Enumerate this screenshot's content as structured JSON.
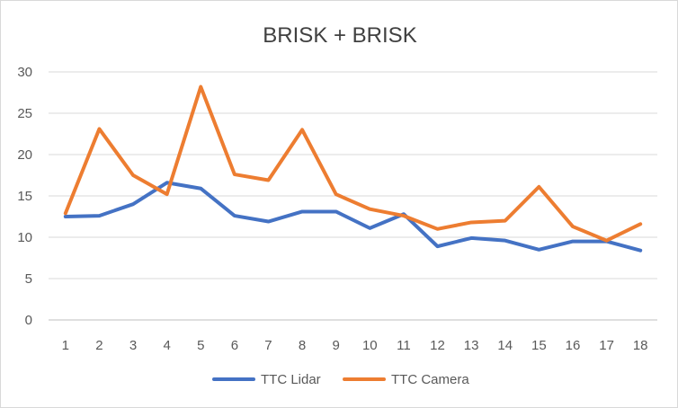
{
  "chart_data": {
    "type": "line",
    "title": "BRISK + BRISK",
    "xlabel": "",
    "ylabel": "",
    "categories": [
      "1",
      "2",
      "3",
      "4",
      "5",
      "6",
      "7",
      "8",
      "9",
      "10",
      "11",
      "12",
      "13",
      "14",
      "15",
      "16",
      "17",
      "18"
    ],
    "ylim": [
      0,
      30
    ],
    "yticks": [
      "0",
      "5",
      "10",
      "15",
      "20",
      "25",
      "30"
    ],
    "grid": true,
    "legend": "bottom",
    "series": [
      {
        "name": "TTC Lidar",
        "color": "#4472C4",
        "values": [
          12.5,
          12.6,
          14.0,
          16.6,
          15.9,
          12.6,
          11.9,
          13.1,
          13.1,
          11.1,
          12.8,
          8.9,
          9.9,
          9.6,
          8.5,
          9.5,
          9.5,
          8.4
        ]
      },
      {
        "name": "TTC Camera",
        "color": "#ED7D31",
        "values": [
          12.9,
          23.1,
          17.5,
          15.2,
          28.2,
          17.6,
          16.9,
          23.0,
          15.2,
          13.4,
          12.6,
          11.0,
          11.8,
          12.0,
          16.1,
          11.3,
          9.6,
          11.6
        ]
      }
    ]
  }
}
